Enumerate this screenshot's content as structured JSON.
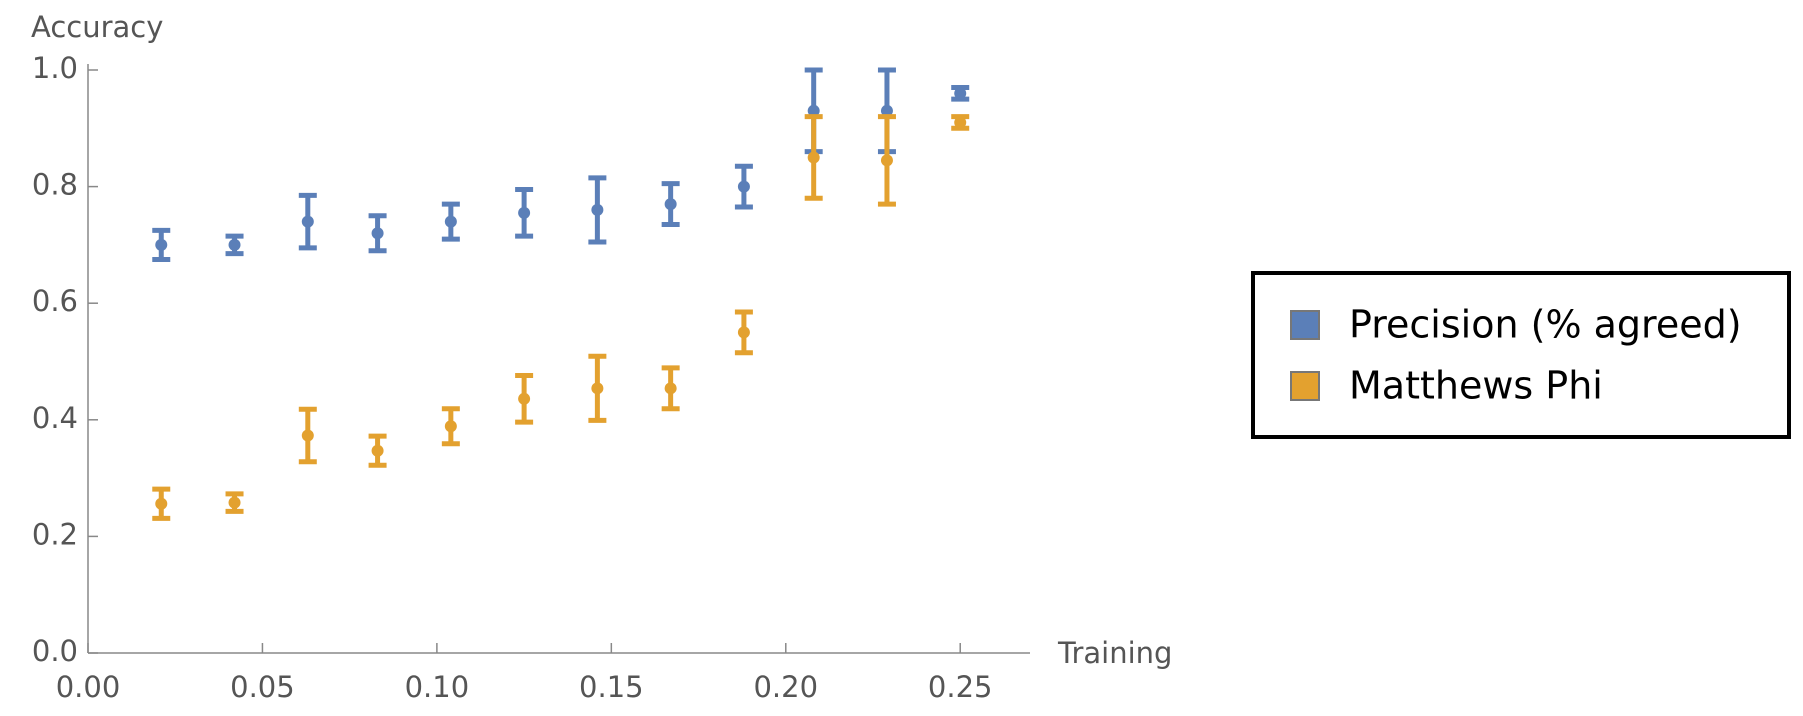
{
  "chart_data": {
    "type": "errorbar",
    "x_label": "Training",
    "y_label": "Accuracy",
    "x": [
      0.021,
      0.042,
      0.063,
      0.083,
      0.104,
      0.125,
      0.146,
      0.167,
      0.188,
      0.208,
      0.229,
      0.25
    ],
    "series": [
      {
        "name": "Precision (% agreed)",
        "color": "#5b7fb8",
        "values": [
          0.7,
          0.7,
          0.74,
          0.72,
          0.74,
          0.755,
          0.76,
          0.77,
          0.8,
          0.93,
          0.93,
          0.96
        ],
        "errors": [
          0.025,
          0.015,
          0.045,
          0.03,
          0.03,
          0.04,
          0.055,
          0.035,
          0.035,
          0.07,
          0.07,
          0.01
        ]
      },
      {
        "name": "Matthews Phi",
        "color": "#e3a12f",
        "values": [
          0.256,
          0.258,
          0.373,
          0.347,
          0.389,
          0.436,
          0.454,
          0.454,
          0.55,
          0.85,
          0.845,
          0.91
        ],
        "errors": [
          0.025,
          0.015,
          0.045,
          0.025,
          0.03,
          0.04,
          0.055,
          0.035,
          0.035,
          0.07,
          0.075,
          0.01
        ]
      }
    ],
    "xlim": [
      0,
      0.27
    ],
    "ylim": [
      0,
      1.0
    ],
    "xticks": [
      {
        "value": 0,
        "label": "0.00"
      },
      {
        "value": 0.05,
        "label": "0.05"
      },
      {
        "value": 0.1,
        "label": "0.10"
      },
      {
        "value": 0.15,
        "label": "0.15"
      },
      {
        "value": 0.2,
        "label": "0.20"
      },
      {
        "value": 0.25,
        "label": "0.25"
      }
    ],
    "yticks": [
      {
        "value": 0,
        "label": "0.0"
      },
      {
        "value": 0.2,
        "label": "0.2"
      },
      {
        "value": 0.4,
        "label": "0.4"
      },
      {
        "value": 0.6,
        "label": "0.6"
      },
      {
        "value": 0.8,
        "label": "0.8"
      },
      {
        "value": 1.0,
        "label": "1.0"
      }
    ],
    "legend": "right"
  }
}
